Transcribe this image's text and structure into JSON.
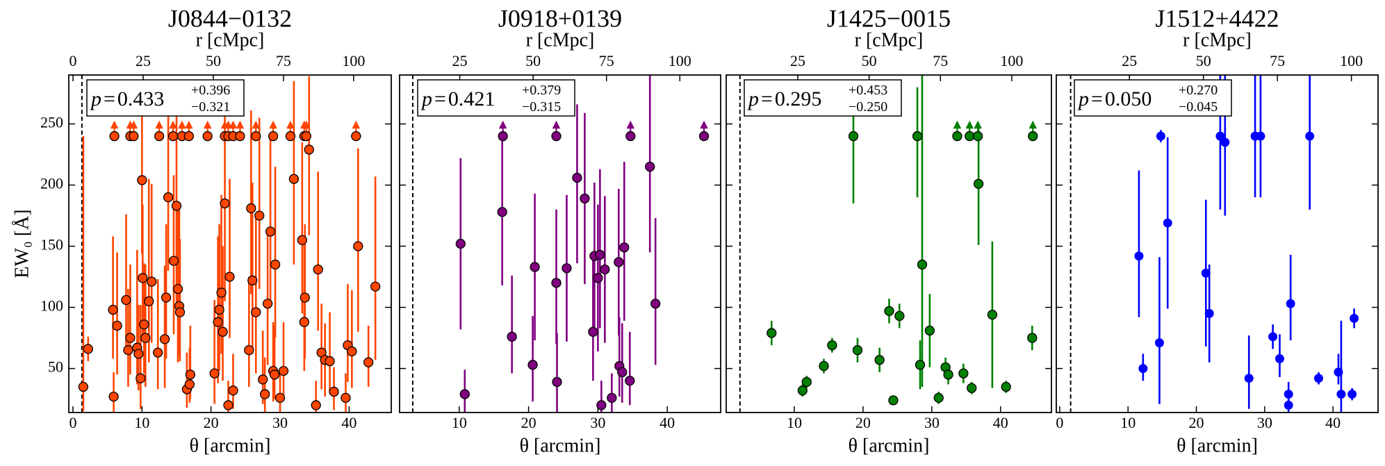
{
  "chart_data": [
    {
      "type": "scatter",
      "title": "J0844−0132",
      "xlabel": "θ [arcmin]",
      "x2label": "r [cMpc]",
      "ylabel": "EW₀ [Å]",
      "xlim": [
        -0.6,
        46.1
      ],
      "xticks": [
        0,
        10,
        20,
        30,
        40
      ],
      "x2lim": [
        -1.5,
        113.4
      ],
      "x2ticks": [
        0,
        25,
        50,
        75,
        100
      ],
      "ylim": [
        14,
        290
      ],
      "yticks": [
        50,
        100,
        150,
        200,
        250
      ],
      "vline": 1.3,
      "color": "#ff4500",
      "marker_edge": "#000000",
      "annotation": {
        "symbol": "p",
        "relation": "=",
        "value": "0.433",
        "upper": "+0.396",
        "lower": "−0.321"
      },
      "x": [
        1.5,
        2.2,
        5.8,
        5.9,
        6.4,
        7.7,
        8.0,
        8.3,
        9.3,
        9.5,
        9.8,
        10.0,
        10.1,
        10.3,
        10.5,
        11.0,
        11.4,
        12.3,
        13.3,
        13.5,
        13.8,
        14.6,
        15.0,
        15.2,
        15.4,
        15.5,
        16.5,
        16.9,
        17.0,
        20.5,
        21.0,
        21.2,
        21.5,
        21.7,
        22.0,
        22.5,
        22.7,
        23.2,
        25.5,
        25.8,
        26.0,
        26.5,
        27.0,
        27.5,
        27.8,
        28.2,
        28.6,
        29.0,
        29.2,
        29.3,
        30.0,
        30.5,
        32.0,
        33.2,
        33.5,
        33.6,
        34.2,
        35.2,
        35.5,
        36.0,
        36.5,
        37.2,
        37.8,
        39.5,
        39.8,
        40.4,
        41.3,
        42.8,
        43.8
      ],
      "y": [
        35,
        66,
        98,
        27,
        85,
        106,
        65,
        75,
        67,
        62,
        42,
        204,
        124,
        86,
        75,
        105,
        121,
        63,
        74,
        108,
        190,
        138,
        183,
        115,
        101,
        96,
        33,
        37,
        45,
        46,
        88,
        98,
        112,
        80,
        185,
        20,
        125,
        32,
        65,
        181,
        122,
        96,
        175,
        41,
        29,
        103,
        162,
        48,
        45,
        135,
        26,
        48,
        205,
        155,
        88,
        108,
        229,
        20,
        131,
        63,
        57,
        56,
        31,
        26,
        69,
        64,
        150,
        55,
        117
      ],
      "yerr_lo": [
        20,
        10,
        40,
        13,
        40,
        40,
        30,
        30,
        30,
        30,
        25,
        60,
        50,
        40,
        40,
        50,
        50,
        30,
        40,
        50,
        60,
        60,
        80,
        60,
        40,
        40,
        15,
        15,
        20,
        25,
        50,
        50,
        50,
        40,
        80,
        10,
        50,
        15,
        30,
        70,
        60,
        50,
        60,
        20,
        15,
        50,
        60,
        25,
        20,
        60,
        12,
        20,
        70,
        60,
        40,
        50,
        70,
        10,
        50,
        30,
        30,
        25,
        15,
        12,
        30,
        30,
        70,
        20,
        60
      ],
      "yerr_hi": [
        205,
        10,
        60,
        20,
        60,
        70,
        50,
        60,
        80,
        40,
        60,
        60,
        60,
        50,
        60,
        100,
        80,
        60,
        60,
        60,
        80,
        70,
        80,
        70,
        80,
        60,
        30,
        30,
        40,
        60,
        70,
        70,
        80,
        70,
        80,
        20,
        80,
        30,
        60,
        80,
        80,
        80,
        80,
        40,
        30,
        60,
        80,
        40,
        40,
        80,
        20,
        40,
        80,
        80,
        70,
        60,
        60,
        20,
        80,
        40,
        30,
        40,
        20,
        20,
        50,
        50,
        80,
        30,
        90
      ],
      "limit_x": [
        6,
        8.3,
        8.8,
        12.5,
        14.5,
        15.8,
        16.8,
        19.5,
        22,
        22.5,
        23.2,
        24.2,
        26.5,
        29,
        31.5,
        33.5,
        33.8,
        41
      ],
      "limit_y": [
        240,
        240,
        240,
        240,
        240,
        240,
        240,
        240,
        240,
        240,
        240,
        240,
        240,
        240,
        240,
        240,
        240,
        240
      ]
    },
    {
      "type": "scatter",
      "title": "J0918+0139",
      "xlabel": "θ [arcmin]",
      "x2label": "r [cMpc]",
      "xlim": [
        1.4,
        47.7
      ],
      "xticks": [
        10,
        20,
        30,
        40
      ],
      "x2lim": [
        4.5,
        113.9
      ],
      "x2ticks": [
        25,
        50,
        75,
        100
      ],
      "ylim": [
        14,
        290
      ],
      "yticks": [
        50,
        100,
        150,
        200,
        250
      ],
      "vline": 3.3,
      "color": "#800080",
      "marker_edge": "#000000",
      "annotation": {
        "symbol": "p",
        "relation": "=",
        "value": "0.421",
        "upper": "+0.379",
        "lower": "−0.315"
      },
      "x": [
        10.2,
        10.8,
        16.2,
        17.6,
        20.6,
        20.9,
        24.0,
        24.1,
        25.5,
        27.0,
        28.1,
        29.3,
        29.5,
        30.0,
        30.3,
        30.5,
        31.0,
        32.0,
        33.0,
        33.1,
        33.5,
        33.8,
        34.6,
        37.5,
        38.3
      ],
      "y": [
        152,
        29,
        178,
        76,
        53,
        133,
        120,
        39,
        132,
        206,
        189,
        80,
        142,
        124,
        143,
        20,
        131,
        26,
        137,
        52,
        47,
        149,
        40,
        215,
        103
      ],
      "yerr_lo": [
        70,
        20,
        60,
        30,
        30,
        60,
        50,
        25,
        60,
        70,
        70,
        40,
        60,
        60,
        60,
        10,
        60,
        15,
        60,
        25,
        25,
        60,
        20,
        70,
        50
      ],
      "yerr_hi": [
        70,
        20,
        60,
        50,
        40,
        60,
        60,
        40,
        60,
        60,
        70,
        60,
        60,
        60,
        70,
        20,
        60,
        20,
        60,
        40,
        40,
        70,
        40,
        75,
        70
      ],
      "limit_x": [
        16.3,
        24,
        34.7,
        45.3
      ],
      "limit_y": [
        240,
        240,
        240,
        240
      ]
    },
    {
      "type": "scatter",
      "title": "J1425−0015",
      "xlabel": "θ [arcmin]",
      "x2label": "r [cMpc]",
      "xlim": [
        0.1,
        47.4
      ],
      "xticks": [
        10,
        20,
        30,
        40
      ],
      "x2lim": [
        -0.1,
        113.9
      ],
      "x2ticks": [
        25,
        50,
        75,
        100
      ],
      "ylim": [
        14,
        290
      ],
      "yticks": [
        50,
        100,
        150,
        200,
        250
      ],
      "vline": 2.1,
      "color": "#008000",
      "marker_edge": "#000000",
      "annotation": {
        "symbol": "p",
        "relation": "=",
        "value": "0.295",
        "upper": "+0.453",
        "lower": "−0.250"
      },
      "x": [
        6.7,
        11.2,
        11.8,
        14.3,
        15.5,
        18.6,
        19.2,
        22.4,
        23.8,
        24.4,
        25.3,
        27.9,
        28.3,
        28.6,
        29.7,
        31.0,
        32.0,
        32.4,
        34.6,
        35.8,
        36.8,
        38.8,
        40.8,
        44.6
      ],
      "y": [
        79,
        32,
        39,
        52,
        69,
        240,
        65,
        57,
        97,
        24,
        93,
        240,
        53,
        135,
        81,
        26,
        51,
        45,
        46,
        34,
        201,
        94,
        35,
        75
      ],
      "yerr_lo": [
        10,
        5,
        5,
        6,
        6,
        55,
        10,
        10,
        10,
        3,
        10,
        50,
        20,
        100,
        30,
        5,
        8,
        8,
        8,
        5,
        50,
        60,
        5,
        10
      ],
      "yerr_hi": [
        10,
        5,
        5,
        6,
        6,
        30,
        10,
        10,
        10,
        3,
        10,
        40,
        20,
        160,
        30,
        5,
        8,
        8,
        8,
        5,
        50,
        60,
        5,
        10
      ],
      "limit_x": [
        33.7,
        35.5,
        36.7,
        44.7
      ],
      "limit_y": [
        240,
        240,
        240,
        240
      ]
    },
    {
      "type": "scatter",
      "title": "J1512+4422",
      "xlabel": "θ [arcmin]",
      "x2label": "r [cMpc]",
      "xlim": [
        -0.5,
        46.6
      ],
      "xticks": [
        0,
        10,
        20,
        30,
        40
      ],
      "x2lim": [
        0.3,
        109
      ],
      "x2ticks": [
        25,
        50,
        75,
        100
      ],
      "ylim": [
        14,
        290
      ],
      "yticks": [
        50,
        100,
        150,
        200,
        250
      ],
      "vline": 1.6,
      "color": "#0000ff",
      "annotation": {
        "symbol": "p",
        "relation": "=",
        "value": "0.050",
        "upper": "+0.270",
        "lower": "−0.045"
      },
      "x": [
        11.6,
        12.2,
        14.6,
        14.8,
        15.8,
        21.4,
        21.9,
        23.5,
        24.2,
        27.7,
        28.6,
        29.4,
        31.2,
        32.2,
        33.5,
        33.5,
        33.8,
        36.6,
        37.9,
        40.8,
        41.2,
        42.8,
        43.1
      ],
      "y": [
        142,
        50,
        71,
        240,
        169,
        128,
        95,
        240,
        235,
        42,
        240,
        240,
        76,
        58,
        29,
        20,
        103,
        240,
        42,
        47,
        29,
        29,
        91
      ],
      "yerr_lo": [
        50,
        10,
        50,
        5,
        70,
        60,
        40,
        60,
        60,
        25,
        50,
        50,
        10,
        15,
        10,
        6,
        30,
        60,
        5,
        10,
        15,
        5,
        8
      ],
      "yerr_hi": [
        70,
        12,
        70,
        5,
        70,
        60,
        40,
        60,
        60,
        35,
        60,
        60,
        10,
        20,
        10,
        6,
        40,
        60,
        5,
        15,
        60,
        5,
        8
      ]
    }
  ]
}
